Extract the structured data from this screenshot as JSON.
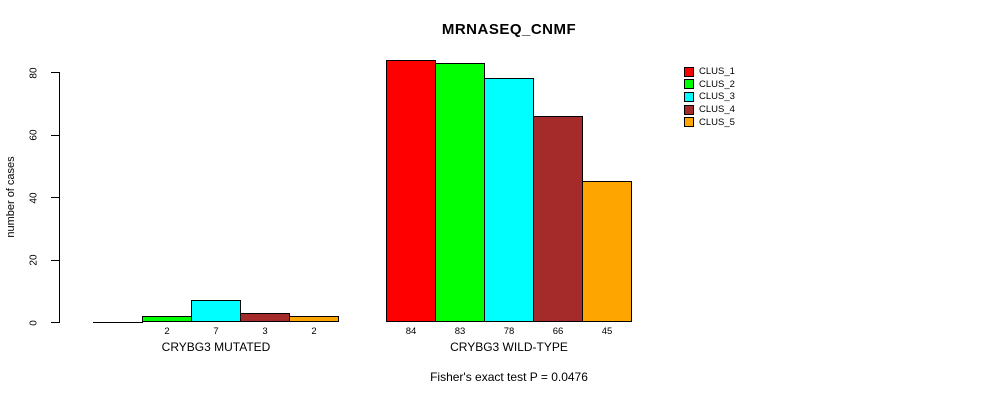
{
  "chart_data": {
    "type": "bar",
    "title": "MRNASEQ_CNMF",
    "xlabel": "",
    "ylabel": "number of cases",
    "ylim": [
      0,
      84
    ],
    "yticks": [
      0,
      20,
      40,
      60,
      80
    ],
    "grid": false,
    "legend_position": "right",
    "categories": [
      "CRYBG3 MUTATED",
      "CRYBG3 WILD-TYPE"
    ],
    "series": [
      {
        "name": "CLUS_1",
        "color": "#FF0000",
        "values": [
          0,
          84
        ]
      },
      {
        "name": "CLUS_2",
        "color": "#00FF00",
        "values": [
          2,
          83
        ]
      },
      {
        "name": "CLUS_3",
        "color": "#00FFFF",
        "values": [
          7,
          78
        ]
      },
      {
        "name": "CLUS_4",
        "color": "#A52A2A",
        "values": [
          3,
          66
        ]
      },
      {
        "name": "CLUS_5",
        "color": "#FFA500",
        "values": [
          2,
          45
        ]
      }
    ],
    "bar_value_labels": [
      [
        "",
        "2",
        "7",
        "3",
        "2"
      ],
      [
        "84",
        "83",
        "78",
        "66",
        "45"
      ]
    ],
    "annotation": "Fisher's exact test P = 0.0476"
  },
  "colors": {
    "background": "#FFFFFF",
    "axis": "#000000",
    "bar_border": "#000000",
    "text": "#000000"
  }
}
